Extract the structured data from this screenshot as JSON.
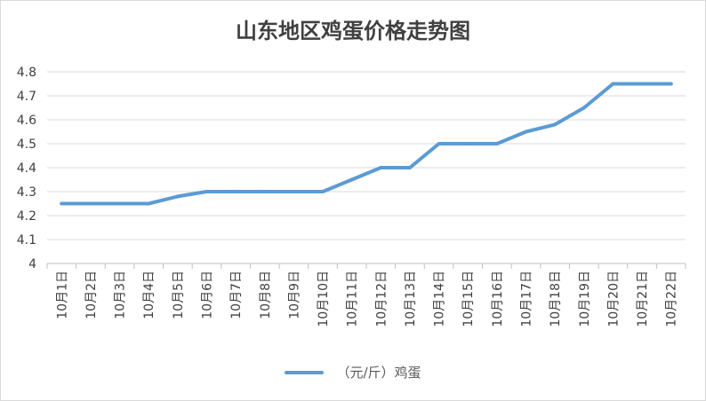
{
  "chart_data": {
    "type": "line",
    "title": "山东地区鸡蛋价格走势图",
    "xlabel": "",
    "ylabel": "",
    "ylim": [
      4,
      4.8
    ],
    "yticks": [
      "4",
      "4.1",
      "4.2",
      "4.3",
      "4.4",
      "4.5",
      "4.6",
      "4.7",
      "4.8"
    ],
    "categories": [
      "10月1日",
      "10月2日",
      "10月3日",
      "10月4日",
      "10月5日",
      "10月6日",
      "10月7日",
      "10月8日",
      "10月9日",
      "10月10日",
      "10月11日",
      "10月12日",
      "10月13日",
      "10月14日",
      "10月15日",
      "10月16日",
      "10月17日",
      "10月18日",
      "10月19日",
      "10月20日",
      "10月21日",
      "10月22日"
    ],
    "series": [
      {
        "name": "（元/斤）鸡蛋",
        "values": [
          4.25,
          4.25,
          4.25,
          4.25,
          4.28,
          4.3,
          4.3,
          4.3,
          4.3,
          4.3,
          4.35,
          4.4,
          4.4,
          4.5,
          4.5,
          4.5,
          4.55,
          4.58,
          4.65,
          4.75,
          4.75,
          4.75
        ]
      }
    ],
    "grid": true,
    "legend_position": "bottom",
    "line_color": "#5b9bd5"
  }
}
